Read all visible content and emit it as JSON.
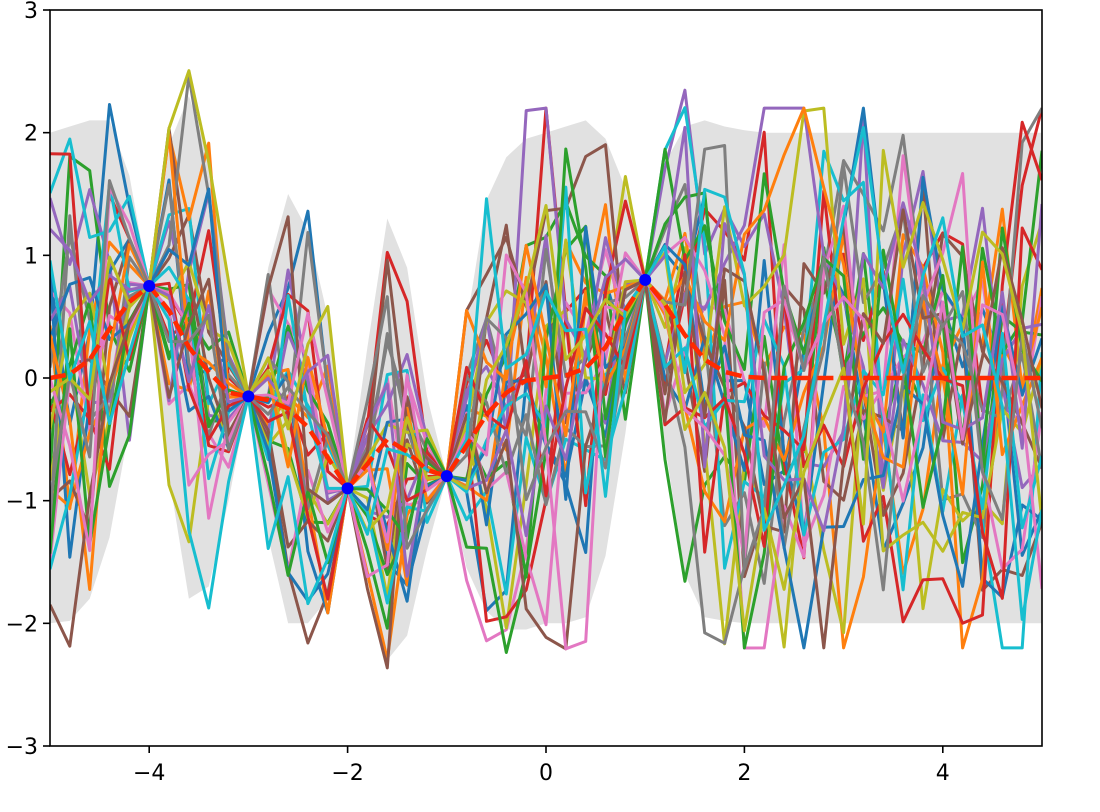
{
  "chart_data": {
    "type": "line",
    "title": "",
    "xlabel": "",
    "ylabel": "",
    "xlim": [
      -5,
      5
    ],
    "ylim": [
      -3,
      3
    ],
    "grid": false,
    "xticks": [
      -4,
      -2,
      0,
      2,
      4
    ],
    "yticks": [
      -3,
      -2,
      -1,
      0,
      1,
      2,
      3
    ],
    "xtick_labels": [
      "−4",
      "−2",
      "0",
      "2",
      "4"
    ],
    "ytick_labels": [
      "−3",
      "−2",
      "−1",
      "0",
      "1",
      "2",
      "3"
    ],
    "x": [
      -5.0,
      -4.8,
      -4.6,
      -4.4,
      -4.2,
      -4.0,
      -3.8,
      -3.6,
      -3.4,
      -3.2,
      -3.0,
      -2.8,
      -2.6,
      -2.4,
      -2.2,
      -2.0,
      -1.8,
      -1.6,
      -1.4,
      -1.2,
      -1.0,
      -0.8,
      -0.6,
      -0.4,
      -0.2,
      0.0,
      0.2,
      0.4,
      0.6,
      0.8,
      1.0,
      1.2,
      1.4,
      1.6,
      1.8,
      2.0,
      2.2,
      2.4,
      2.6,
      2.8,
      3.0,
      3.2,
      3.4,
      3.6,
      3.8,
      4.0,
      4.2,
      4.4,
      4.6,
      4.8,
      5.0
    ],
    "observed_points": [
      {
        "x": -4.0,
        "y": 0.75
      },
      {
        "x": -3.0,
        "y": -0.15
      },
      {
        "x": -2.0,
        "y": -0.9
      },
      {
        "x": -1.0,
        "y": -0.8
      },
      {
        "x": 1.0,
        "y": 0.8
      }
    ],
    "mean": [
      0.0,
      0.03,
      0.15,
      0.4,
      0.62,
      0.75,
      0.55,
      0.25,
      0.05,
      -0.12,
      -0.15,
      -0.18,
      -0.25,
      -0.4,
      -0.65,
      -0.9,
      -0.7,
      -0.5,
      -0.6,
      -0.75,
      -0.8,
      -0.55,
      -0.3,
      -0.12,
      -0.02,
      0.0,
      0.02,
      0.08,
      0.25,
      0.55,
      0.8,
      0.6,
      0.35,
      0.15,
      0.05,
      0.01,
      0.0,
      0.0,
      0.0,
      0.0,
      0.0,
      0.0,
      0.0,
      0.0,
      0.0,
      0.0,
      0.0,
      0.0,
      0.0,
      0.0,
      0.0
    ],
    "band_upper": [
      2.0,
      2.05,
      2.1,
      2.1,
      1.65,
      0.75,
      1.9,
      2.3,
      1.8,
      0.85,
      -0.15,
      0.9,
      1.5,
      1.2,
      0.5,
      -0.9,
      0.25,
      1.3,
      0.9,
      -0.15,
      -0.8,
      0.45,
      1.45,
      1.8,
      1.95,
      2.0,
      2.05,
      2.1,
      1.95,
      1.55,
      0.8,
      1.75,
      2.05,
      2.1,
      2.05,
      2.02,
      2.0,
      2.0,
      2.0,
      2.0,
      2.0,
      2.0,
      2.0,
      2.0,
      2.0,
      2.0,
      2.0,
      2.0,
      2.0,
      2.0,
      2.0
    ],
    "band_lower": [
      -2.0,
      -1.98,
      -1.8,
      -1.3,
      -0.4,
      0.75,
      -0.8,
      -1.8,
      -1.7,
      -1.0,
      -0.15,
      -1.3,
      -2.0,
      -2.0,
      -1.8,
      -0.9,
      -1.6,
      -2.3,
      -2.1,
      -1.4,
      -0.8,
      -1.55,
      -1.9,
      -2.05,
      -2.05,
      -2.0,
      -2.0,
      -1.95,
      -1.45,
      -0.45,
      0.8,
      -0.55,
      -1.6,
      -1.95,
      -1.98,
      -2.0,
      -2.0,
      -2.0,
      -2.0,
      -2.0,
      -2.0,
      -2.0,
      -2.0,
      -2.0,
      -2.0,
      -2.0,
      -2.0,
      -2.0,
      -2.0,
      -2.0,
      -2.0
    ],
    "sample_count": 30,
    "sample_colors": [
      "#1f77b4",
      "#ff7f0e",
      "#2ca02c",
      "#d62728",
      "#9467bd",
      "#8c564b",
      "#e377c2",
      "#7f7f7f",
      "#bcbd22",
      "#17becf"
    ],
    "band_color": "#e1e1e1",
    "mean_color": "#ff2a00",
    "observed_color": "#0000ff"
  }
}
